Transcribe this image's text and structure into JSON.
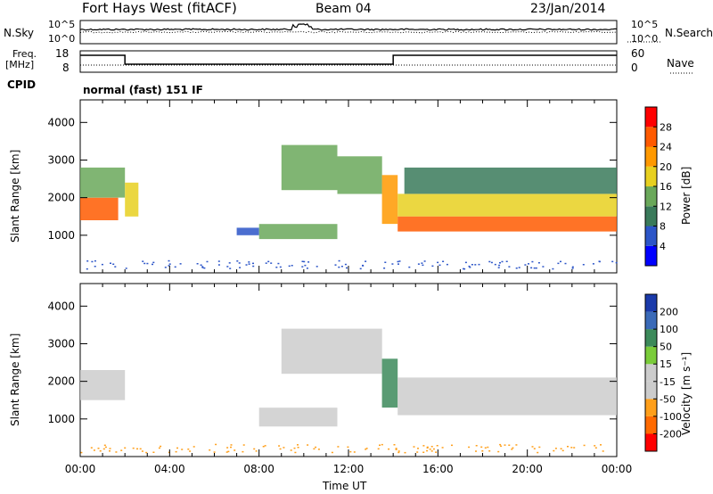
{
  "header": {
    "station": "Fort Hays West (fitACF)",
    "beam": "Beam 04",
    "date": "23/Jan/2014"
  },
  "left_labels": {
    "nsky": "N.Sky",
    "freq": "Freq.",
    "freq_unit": "[MHz]",
    "cpid": "CPID"
  },
  "right_labels": {
    "nsearch": "N.Search",
    "nave": "Nave"
  },
  "noise_panel": {
    "tick_top_left": "10^5",
    "tick_bottom_left": "10^0",
    "tick_top_right": "10^5",
    "tick_bottom_right": "10^0"
  },
  "freq_panel": {
    "left_ticks": [
      "18",
      "8"
    ],
    "right_ticks": [
      "60",
      "0"
    ]
  },
  "cpid_text": "normal (fast) 151 IF",
  "panels": {
    "power": {
      "ylabel": "Slant Range [km]",
      "colorbar_label": "Power [dB]"
    },
    "velocity": {
      "ylabel": "Slant Range [km]",
      "colorbar_label": "Velocity [m s⁻¹]"
    }
  },
  "xaxis": {
    "label": "Time UT"
  },
  "chart_data": [
    {
      "type": "heatmap",
      "title": "Power",
      "xlabel": "Time UT",
      "ylabel": "Slant Range [km]",
      "x_ticks": [
        "00:00",
        "04:00",
        "08:00",
        "12:00",
        "16:00",
        "20:00",
        "00:00"
      ],
      "y_ticks": [
        "1000",
        "2000",
        "3000",
        "4000"
      ],
      "ylim": [
        0,
        4600
      ],
      "colorbar": {
        "label": "Power [dB]",
        "ticks": [
          "4",
          "8",
          "12",
          "16",
          "20",
          "24",
          "28"
        ],
        "colors": [
          "#0000ff",
          "#2c55c8",
          "#3a7a5a",
          "#6aa85a",
          "#e8d020",
          "#ff9900",
          "#ff5a00",
          "#ff0000"
        ]
      },
      "regions": [
        {
          "t0": 0.0,
          "t1": 1.7,
          "r0": 1400,
          "r1": 2000,
          "value": 26
        },
        {
          "t0": 0.0,
          "t1": 2.0,
          "r0": 2000,
          "r1": 2800,
          "value": 12
        },
        {
          "t0": 2.0,
          "t1": 2.6,
          "r0": 1500,
          "r1": 2400,
          "value": 18
        },
        {
          "t0": 7.0,
          "t1": 8.0,
          "r0": 1000,
          "r1": 1200,
          "value": 6
        },
        {
          "t0": 8.0,
          "t1": 11.5,
          "r0": 900,
          "r1": 1300,
          "value": 14
        },
        {
          "t0": 9.0,
          "t1": 11.5,
          "r0": 2200,
          "r1": 3400,
          "value": 12
        },
        {
          "t0": 11.5,
          "t1": 13.5,
          "r0": 2100,
          "r1": 3100,
          "value": 14
        },
        {
          "t0": 13.5,
          "t1": 14.2,
          "r0": 1300,
          "r1": 2600,
          "value": 20
        },
        {
          "t0": 14.2,
          "t1": 24.0,
          "r0": 1100,
          "r1": 1500,
          "value": 26
        },
        {
          "t0": 14.2,
          "t1": 24.0,
          "r0": 1500,
          "r1": 2100,
          "value": 16
        },
        {
          "t0": 14.5,
          "t1": 24.0,
          "r0": 2100,
          "r1": 2800,
          "value": 8
        }
      ]
    },
    {
      "type": "heatmap",
      "title": "Velocity",
      "xlabel": "Time UT",
      "ylabel": "Slant Range [km]",
      "x_ticks": [
        "00:00",
        "04:00",
        "08:00",
        "12:00",
        "16:00",
        "20:00",
        "00:00"
      ],
      "y_ticks": [
        "1000",
        "2000",
        "3000",
        "4000"
      ],
      "ylim": [
        0,
        4600
      ],
      "colorbar": {
        "label": "Velocity [m s⁻¹]",
        "ticks": [
          "200",
          "100",
          "50",
          "15",
          "-15",
          "-50",
          "-100",
          "-200"
        ],
        "colors": [
          "#1a3aaa",
          "#3a6ab8",
          "#3c8a5a",
          "#7acc3a",
          "#cccccc",
          "#cccccc",
          "#ff9f1a",
          "#ff6a00",
          "#ff0000"
        ]
      },
      "regions": [
        {
          "t0": 0.0,
          "t1": 2.0,
          "r0": 1500,
          "r1": 2300,
          "value": 0
        },
        {
          "t0": 8.0,
          "t1": 11.5,
          "r0": 800,
          "r1": 1300,
          "value": -50
        },
        {
          "t0": 9.0,
          "t1": 13.5,
          "r0": 2200,
          "r1": 3400,
          "value": 0
        },
        {
          "t0": 13.5,
          "t1": 14.2,
          "r0": 1300,
          "r1": 2600,
          "value": 50
        },
        {
          "t0": 14.2,
          "t1": 24.0,
          "r0": 1100,
          "r1": 2100,
          "value": 0
        }
      ]
    }
  ]
}
